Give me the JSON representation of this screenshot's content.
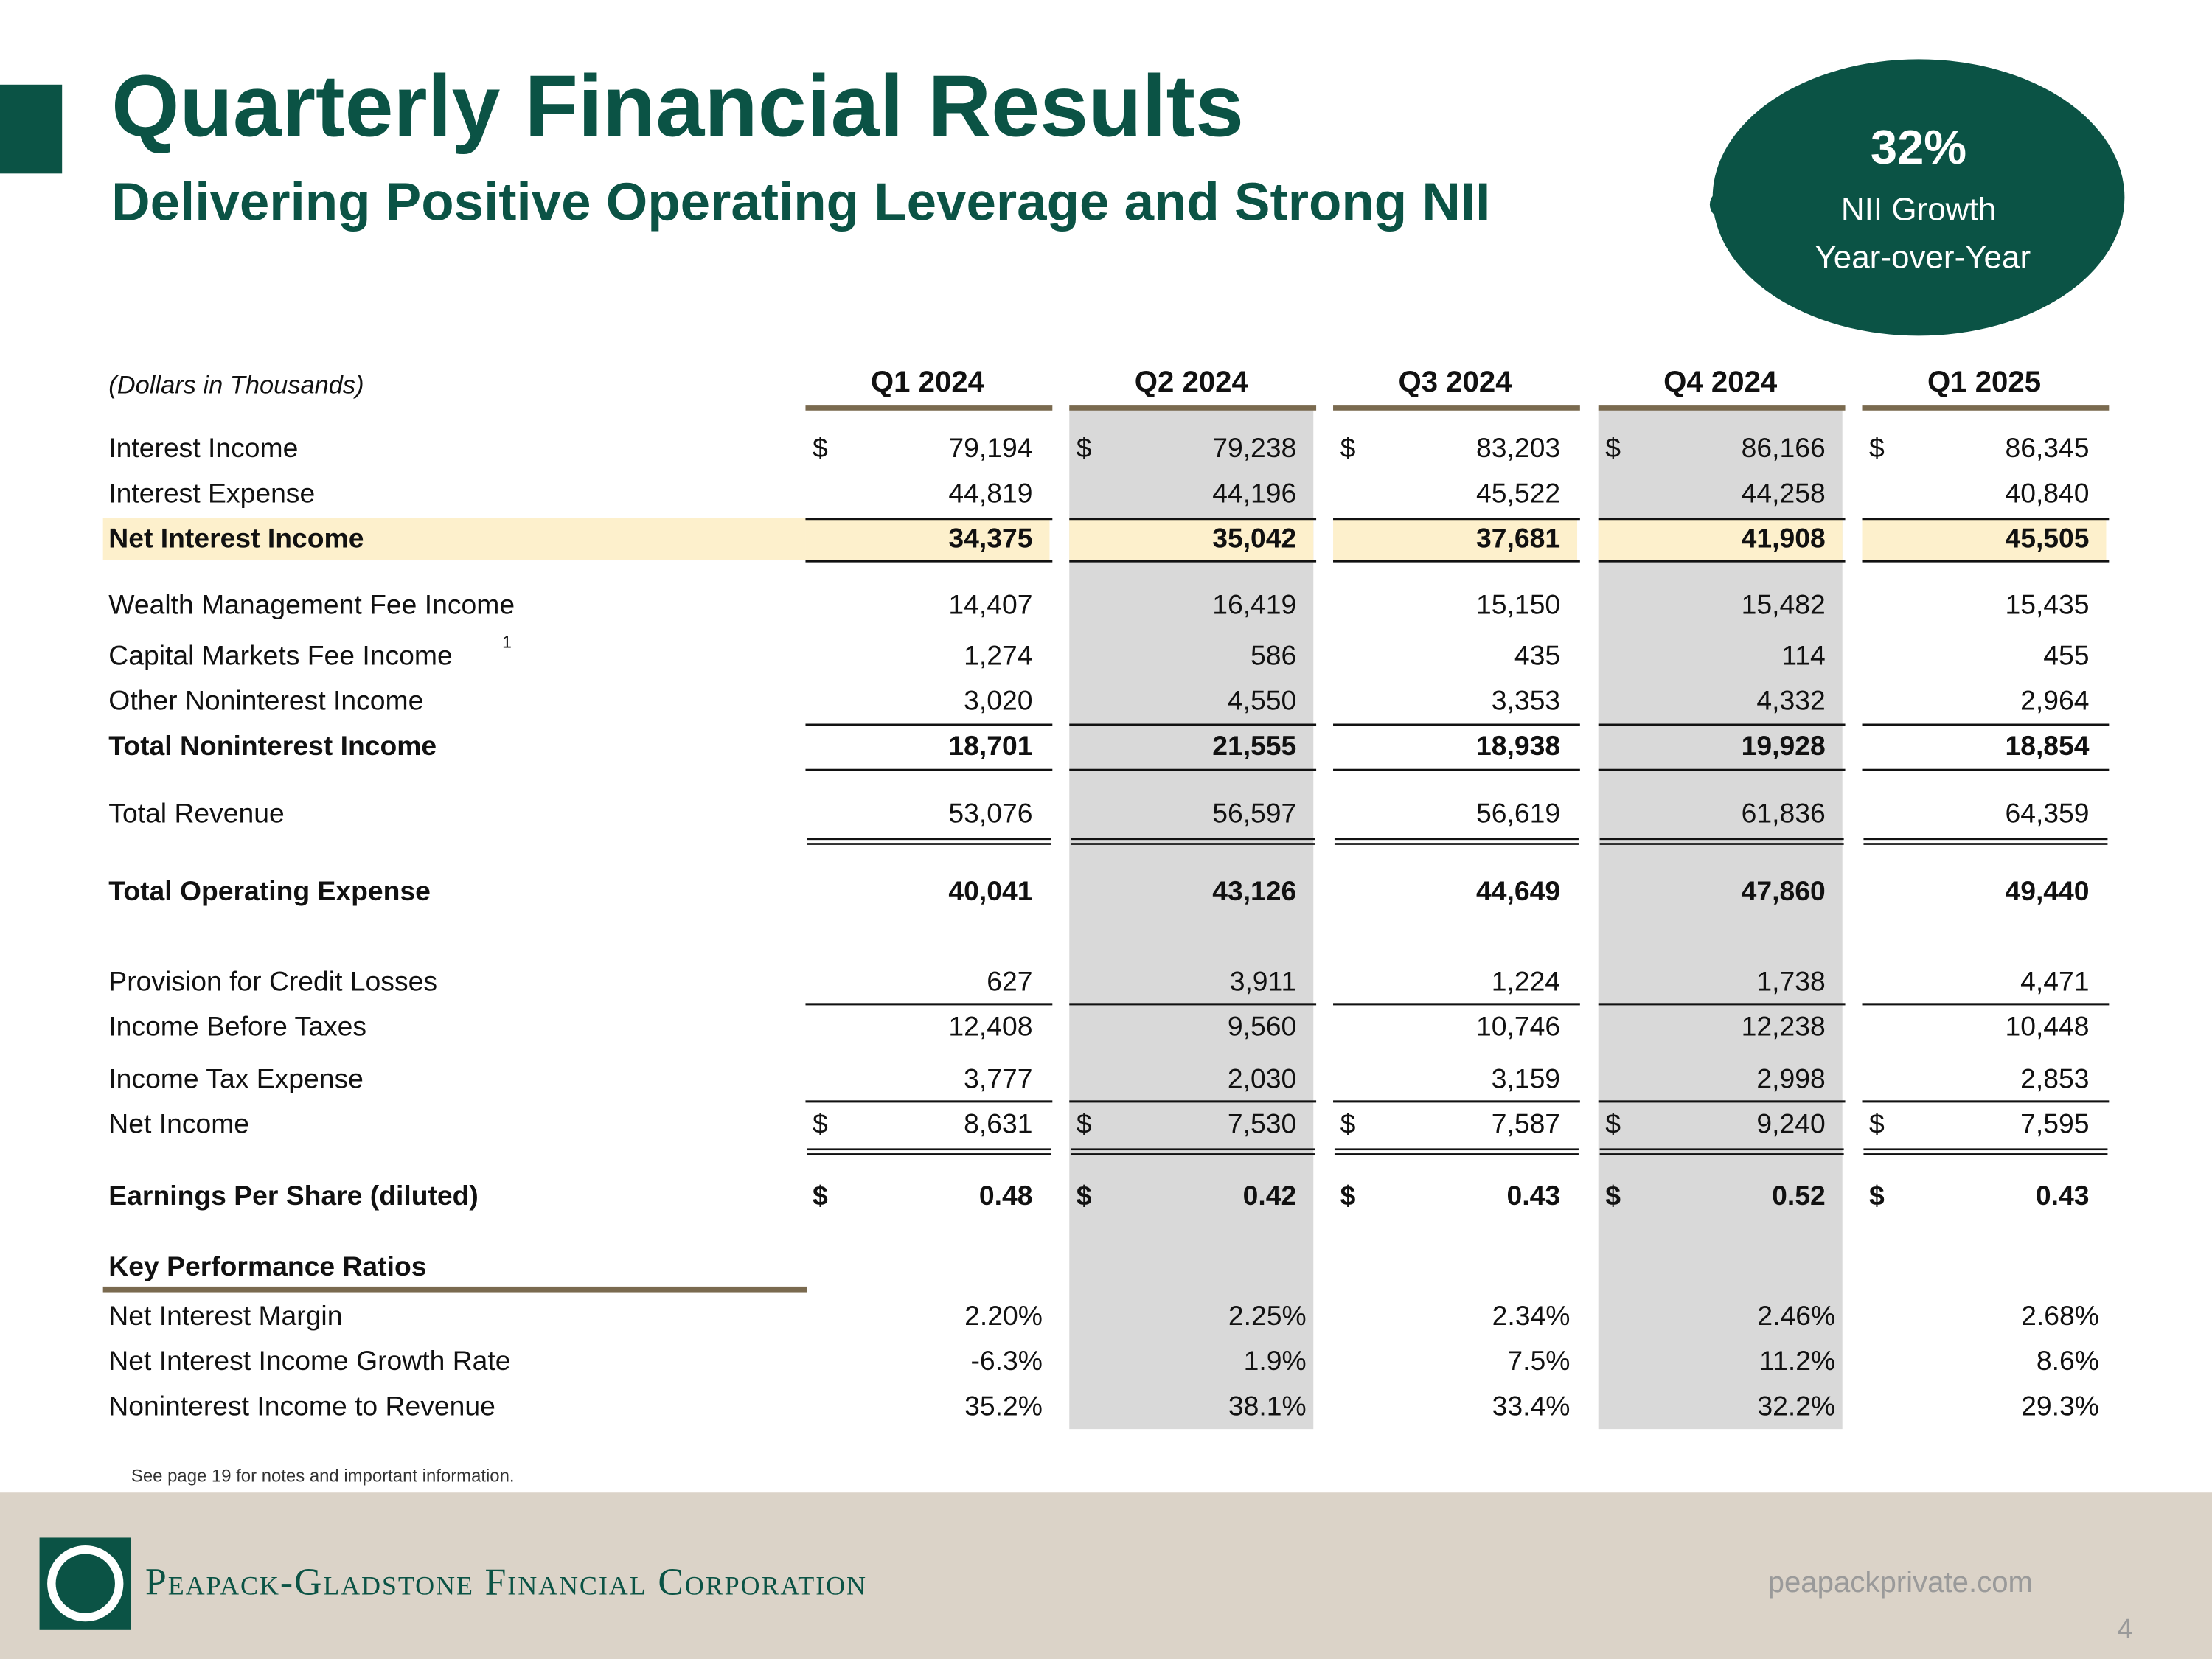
{
  "header": {
    "title": "Quarterly Financial Results",
    "subtitle": "Delivering Positive Operating Leverage and Strong NII"
  },
  "badge": {
    "value": "32%",
    "line1": "NII Growth",
    "line2": "Year-over-Year"
  },
  "table": {
    "unit_note": "(Dollars in Thousands)",
    "columns": [
      "Q1 2024",
      "Q2 2024",
      "Q3 2024",
      "Q4 2024",
      "Q1 2025"
    ],
    "rows": [
      {
        "label": "Interest Income",
        "currency": "$",
        "values": [
          "79,194",
          "79,238",
          "83,203",
          "86,166",
          "86,345"
        ]
      },
      {
        "label": "Interest Expense",
        "values": [
          "44,819",
          "44,196",
          "45,522",
          "44,258",
          "40,840"
        ]
      },
      {
        "label": "Net Interest Income",
        "values": [
          "34,375",
          "35,042",
          "37,681",
          "41,908",
          "45,505"
        ]
      },
      {
        "label": "Wealth Management Fee Income",
        "values": [
          "14,407",
          "16,419",
          "15,150",
          "15,482",
          "15,435"
        ]
      },
      {
        "label": "Capital Markets Fee Income",
        "footnote_ref": "1",
        "values": [
          "1,274",
          "586",
          "435",
          "114",
          "455"
        ]
      },
      {
        "label": "Other Noninterest Income",
        "values": [
          "3,020",
          "4,550",
          "3,353",
          "4,332",
          "2,964"
        ]
      },
      {
        "label": "Total Noninterest Income",
        "values": [
          "18,701",
          "21,555",
          "18,938",
          "19,928",
          "18,854"
        ]
      },
      {
        "label": "Total Revenue",
        "values": [
          "53,076",
          "56,597",
          "56,619",
          "61,836",
          "64,359"
        ]
      },
      {
        "label": "Total Operating Expense",
        "values": [
          "40,041",
          "43,126",
          "44,649",
          "47,860",
          "49,440"
        ]
      },
      {
        "label": "Provision for Credit Losses",
        "values": [
          "627",
          "3,911",
          "1,224",
          "1,738",
          "4,471"
        ]
      },
      {
        "label": "Income Before Taxes",
        "values": [
          "12,408",
          "9,560",
          "10,746",
          "12,238",
          "10,448"
        ]
      },
      {
        "label": "Income Tax Expense",
        "values": [
          "3,777",
          "2,030",
          "3,159",
          "2,998",
          "2,853"
        ]
      },
      {
        "label": "Net Income",
        "currency": "$",
        "values": [
          "8,631",
          "7,530",
          "7,587",
          "9,240",
          "7,595"
        ]
      },
      {
        "label": "Earnings Per Share (diluted)",
        "currency": "$",
        "values": [
          "0.48",
          "0.42",
          "0.43",
          "0.52",
          "0.43"
        ]
      },
      {
        "label": "Key Performance Ratios"
      },
      {
        "label": "Net Interest Margin",
        "values": [
          "2.20%",
          "2.25%",
          "2.34%",
          "2.46%",
          "2.68%"
        ]
      },
      {
        "label": "Net Interest Income Growth Rate",
        "values": [
          "-6.3%",
          "1.9%",
          "7.5%",
          "11.2%",
          "8.6%"
        ]
      },
      {
        "label": "Noninterest Income to Revenue",
        "values": [
          "35.2%",
          "38.1%",
          "33.4%",
          "32.2%",
          "29.3%"
        ]
      }
    ]
  },
  "footnote": "See page 19 for notes and important information.",
  "footer": {
    "company": "Peapack-Gladstone Financial Corporation",
    "url": "peapackprivate.com",
    "page": "4"
  }
}
